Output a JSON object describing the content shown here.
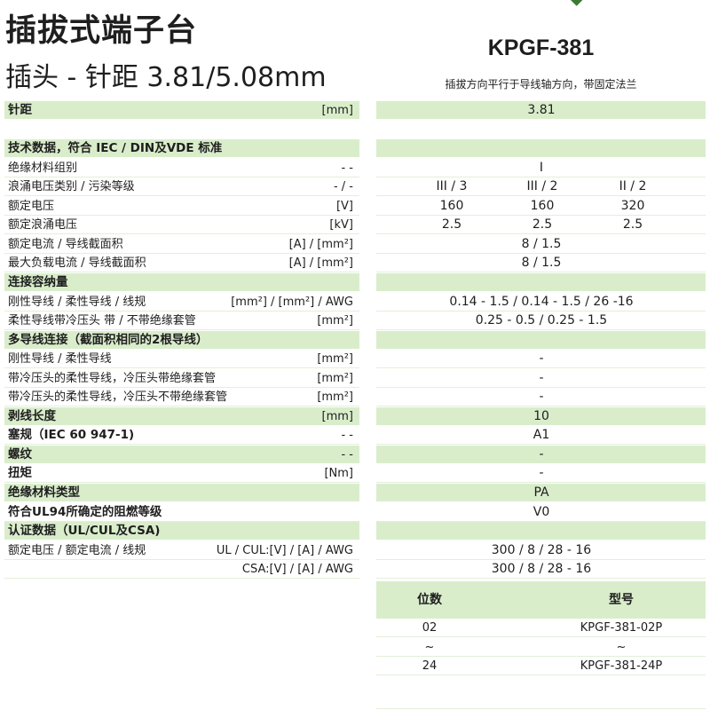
{
  "header": {
    "title": "插拔式端子台",
    "subtitle": "插头 - 针距  3.81/5.08mm",
    "model": "KPGF-381",
    "model_desc": "插拔方向平行于导线轴方向，带固定法兰",
    "accent_color": "#d9edcb"
  },
  "spec_rows": [
    {
      "label": "针距",
      "unit": "[mm]",
      "values": [
        "3.81"
      ],
      "bold": true,
      "green": true
    },
    {
      "label": "技术数据，符合 IEC / DIN及VDE 标准",
      "unit": "",
      "values": [],
      "bold": true,
      "green": true
    },
    {
      "label": "绝缘材料组别",
      "unit": "- -",
      "values": [
        "I"
      ]
    },
    {
      "label": "浪涌电压类别 / 污染等级",
      "unit": "- / -",
      "values": [
        "III / 3",
        "III / 2",
        "II / 2"
      ]
    },
    {
      "label": "额定电压",
      "unit": "[V]",
      "values": [
        "160",
        "160",
        "320"
      ]
    },
    {
      "label": "额定浪涌电压",
      "unit": "[kV]",
      "values": [
        "2.5",
        "2.5",
        "2.5"
      ]
    },
    {
      "label": "额定电流 / 导线截面积",
      "unit": "[A] / [mm²]",
      "values": [
        "8 / 1.5"
      ]
    },
    {
      "label": "最大负载电流 / 导线截面积",
      "unit": "[A] / [mm²]",
      "values": [
        "8 / 1.5"
      ]
    },
    {
      "label": "连接容纳量",
      "unit": "",
      "values": [],
      "bold": true,
      "green": true
    },
    {
      "label": "刚性导线 / 柔性导线 / 线规",
      "unit": "[mm²] / [mm²] / AWG",
      "values": [
        "0.14 - 1.5 / 0.14 - 1.5 / 26 -16"
      ]
    },
    {
      "label": "柔性导线带冷压头 带 / 不带绝缘套管",
      "unit": "[mm²]",
      "values": [
        "0.25 - 0.5 / 0.25 - 1.5"
      ]
    },
    {
      "label": "多导线连接（截面积相同的2根导线）",
      "unit": "",
      "values": [],
      "bold": true,
      "green": true
    },
    {
      "label": "刚性导线 / 柔性导线",
      "unit": "[mm²]",
      "values": [
        "-"
      ]
    },
    {
      "label": "带冷压头的柔性导线，冷压头带绝缘套管",
      "unit": "[mm²]",
      "values": [
        "-"
      ]
    },
    {
      "label": "带冷压头的柔性导线，冷压头不带绝缘套管",
      "unit": "[mm²]",
      "values": [
        "-"
      ]
    },
    {
      "label": "剥线长度",
      "unit": "[mm]",
      "values": [
        "10"
      ],
      "bold": true,
      "green": true
    },
    {
      "label": "塞规（IEC 60 947-1)",
      "unit": "- -",
      "values": [
        "A1"
      ],
      "bold": true
    },
    {
      "label": "螺纹",
      "unit": "- -",
      "values": [
        "-"
      ],
      "bold": true,
      "green": true
    },
    {
      "label": "扭矩",
      "unit": "[Nm]",
      "values": [
        "-"
      ],
      "bold": true
    },
    {
      "label": "绝缘材料类型",
      "unit": "",
      "values": [
        "PA"
      ],
      "bold": true,
      "green": true
    },
    {
      "label": "符合UL94所确定的阻燃等级",
      "unit": "",
      "values": [
        "V0"
      ],
      "bold": true
    },
    {
      "label": "认证数据（UL/CUL及CSA)",
      "unit": "",
      "values": [],
      "bold": true,
      "green": true
    },
    {
      "label": "额定电压 / 额定电流 / 线规",
      "unit": "UL / CUL:[V] / [A] / AWG",
      "values": [
        "300 / 8 / 28 - 16"
      ]
    },
    {
      "label": "",
      "unit": "CSA:[V] / [A] / AWG",
      "values": [
        "300 / 8 / 28 - 16"
      ]
    }
  ],
  "order_table": {
    "headers": [
      "位数",
      "型号"
    ],
    "rows": [
      [
        "02",
        "KPGF-381-02P"
      ],
      [
        "~",
        "~"
      ],
      [
        "24",
        "KPGF-381-24P"
      ]
    ]
  }
}
